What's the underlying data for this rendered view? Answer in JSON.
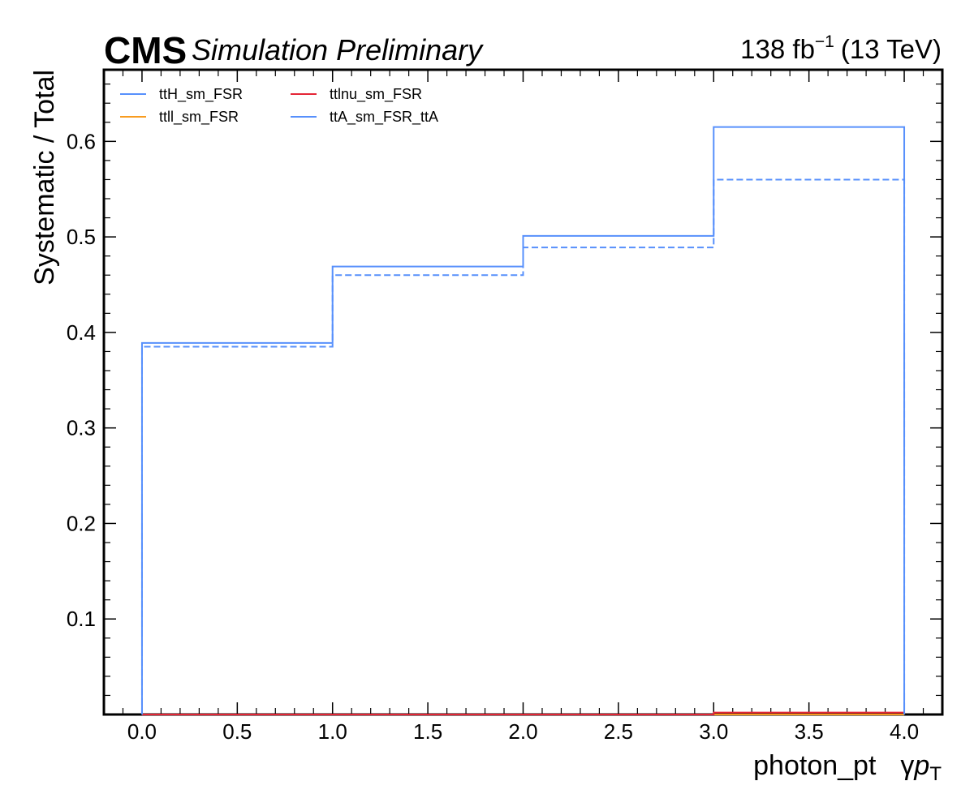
{
  "header": {
    "experiment": "CMS",
    "tag": "Simulation Preliminary",
    "lumi_value": "138 fb",
    "lumi_exp": "−1",
    "energy": "(13 TeV)"
  },
  "chart_data": {
    "type": "line",
    "drawstyle": "steps",
    "title": "",
    "xlabel": "photon_pt",
    "xlabel_symbol": "γ",
    "xlabel_symbol2": "p",
    "xlabel_sub": "T",
    "ylabel": "Systematic / Total",
    "xlim": [
      -0.2,
      4.2
    ],
    "ylim": [
      0.0,
      0.675
    ],
    "bin_edges": [
      0.0,
      1.0,
      2.0,
      3.0,
      4.0
    ],
    "x_ticks": [
      0.0,
      0.5,
      1.0,
      1.5,
      2.0,
      2.5,
      3.0,
      3.5,
      4.0
    ],
    "x_tick_labels": [
      "0.0",
      "0.5",
      "1.0",
      "1.5",
      "2.0",
      "2.5",
      "3.0",
      "3.5",
      "4.0"
    ],
    "y_ticks": [
      0.1,
      0.2,
      0.3,
      0.4,
      0.5,
      0.6
    ],
    "y_tick_labels": [
      "0.1",
      "0.2",
      "0.3",
      "0.4",
      "0.5",
      "0.6"
    ],
    "legend_location": "upper-left",
    "grid": false,
    "series": [
      {
        "name": "ttH_sm_FSR",
        "color": "#5790fc",
        "linestyle": "solid",
        "values": [
          0.0,
          0.0,
          0.0,
          0.0
        ]
      },
      {
        "name": "ttll_sm_FSR",
        "color": "#f89c20",
        "linestyle": "solid",
        "values": [
          0.0,
          0.0,
          0.0,
          0.0
        ]
      },
      {
        "name": "ttlnu_sm_FSR",
        "color": "#e42536",
        "linestyle": "solid",
        "values": [
          0.0,
          0.0,
          0.0,
          0.002
        ]
      },
      {
        "name": "ttA_sm_FSR_ttA",
        "color": "#5790fc",
        "linestyle": "solid",
        "values": [
          0.389,
          0.469,
          0.501,
          0.615
        ]
      },
      {
        "name": "",
        "color": "#5790fc",
        "linestyle": "dashed",
        "show_in_legend": false,
        "values": [
          0.385,
          0.46,
          0.489,
          0.56
        ]
      }
    ]
  }
}
